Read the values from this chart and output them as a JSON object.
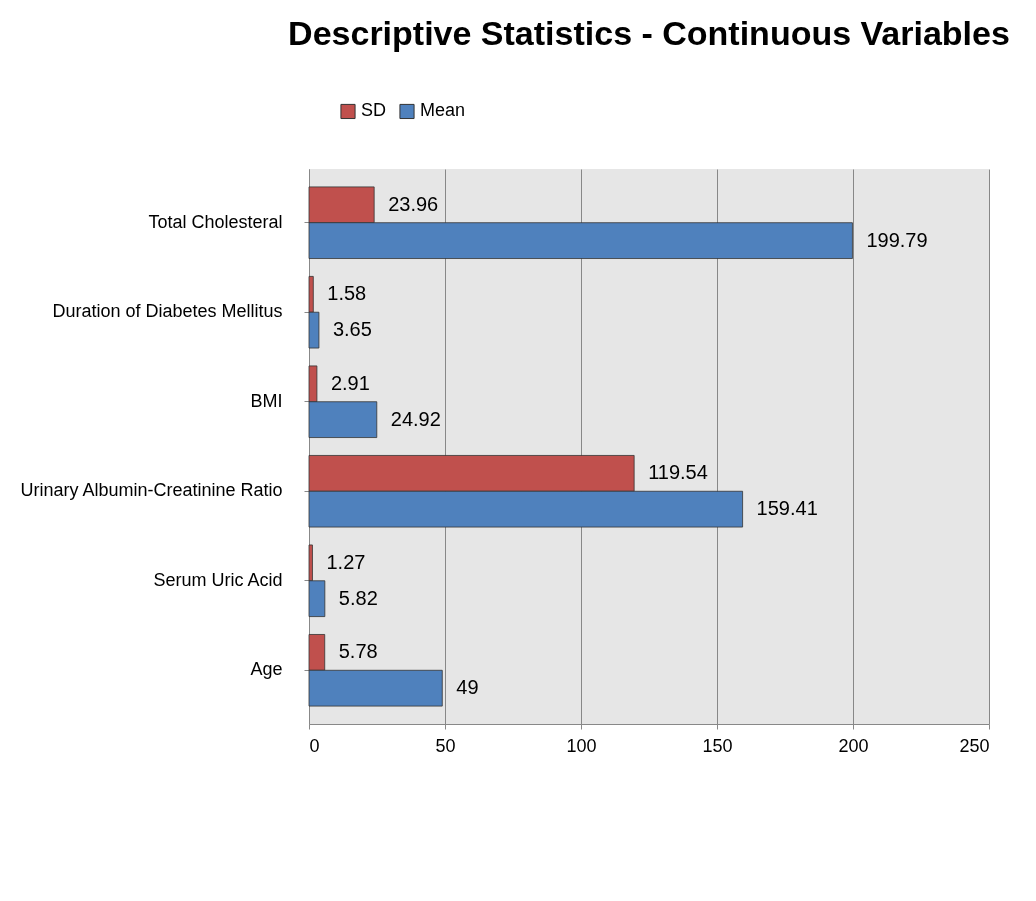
{
  "chart_data": {
    "type": "bar",
    "orientation": "horizontal",
    "title": "Descriptive Statistics - Continuous Variables",
    "categories": [
      "Total Cholesteral",
      "Duration of Diabetes Mellitus",
      "BMI",
      "Urinary Albumin-Creatinine Ratio",
      "Serum Uric Acid",
      "Age"
    ],
    "series": [
      {
        "name": "SD",
        "color": "#c0504d",
        "values": [
          23.96,
          1.58,
          2.91,
          119.54,
          1.27,
          5.78
        ]
      },
      {
        "name": "Mean",
        "color": "#4f81bd",
        "values": [
          199.79,
          3.65,
          24.92,
          159.41,
          5.82,
          49
        ]
      }
    ],
    "xlim": [
      0,
      250
    ],
    "xticks": [
      0,
      50,
      100,
      150,
      200,
      250
    ],
    "grid": "x",
    "legend": "top",
    "data_labels": true
  }
}
